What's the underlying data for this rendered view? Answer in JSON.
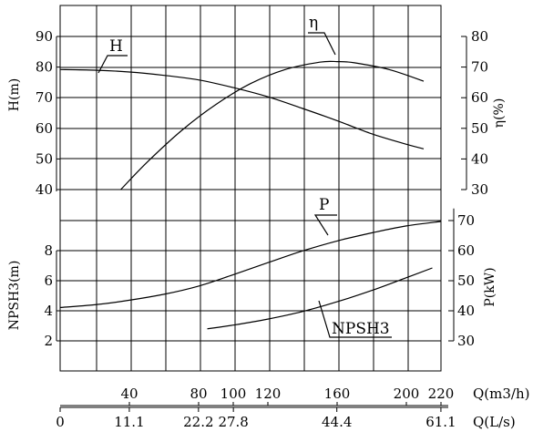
{
  "chart_data": {
    "type": "line",
    "grid": true,
    "x_axes": {
      "q_m3h": {
        "label": "Q(m3/h)",
        "ticks": [
          "40",
          "80",
          "100",
          "120",
          "160",
          "200",
          "220"
        ],
        "range": [
          0,
          220
        ]
      },
      "q_ls": {
        "label": "Q(L/s)",
        "ticks": [
          "0",
          "11.1",
          "22.2",
          "27.8",
          "44.4",
          "61.1"
        ],
        "range": [
          0,
          61.1
        ]
      }
    },
    "y_axes": {
      "H": {
        "label": "H(m)",
        "ticks": [
          "40",
          "50",
          "60",
          "70",
          "80",
          "90"
        ],
        "range": [
          40,
          90
        ]
      },
      "eta": {
        "label": "η(%)",
        "ticks": [
          "30",
          "40",
          "50",
          "60",
          "70",
          "80"
        ],
        "range": [
          30,
          80
        ]
      },
      "P": {
        "label": "P(kW)",
        "ticks": [
          "30",
          "40",
          "50",
          "60",
          "70"
        ],
        "range": [
          30,
          70
        ]
      },
      "NPSH3": {
        "label": "NPSH3(m)",
        "ticks": [
          "2",
          "4",
          "6",
          "8"
        ],
        "range": [
          2,
          8
        ]
      }
    },
    "series": [
      {
        "name": "H",
        "axis": "H",
        "x": [
          0,
          20,
          40,
          60,
          80,
          100,
          120,
          140,
          160,
          180,
          200,
          210
        ],
        "y": [
          79.2,
          79,
          78.4,
          77.3,
          75.8,
          73.3,
          70.3,
          66.5,
          62.5,
          58.2,
          54.8,
          53.3
        ]
      },
      {
        "name": "η",
        "axis": "eta",
        "x": [
          35,
          50,
          70,
          90,
          110,
          130,
          150,
          160,
          170,
          190,
          210
        ],
        "y": [
          30,
          38.8,
          49.2,
          57.8,
          64.6,
          69.2,
          71.6,
          71.8,
          71.4,
          69.2,
          65.4
        ]
      },
      {
        "name": "P",
        "axis": "P",
        "x": [
          0,
          20,
          40,
          60,
          80,
          100,
          120,
          140,
          160,
          180,
          200,
          220
        ],
        "y": [
          41.1,
          42,
          43.5,
          45.5,
          48.2,
          52,
          56,
          59.9,
          63.2,
          65.9,
          68.2,
          69.7
        ]
      },
      {
        "name": "NPSH3",
        "axis": "NPSH3",
        "x": [
          85,
          100,
          120,
          140,
          160,
          180,
          200,
          215
        ],
        "y": [
          2.8,
          3.05,
          3.45,
          3.95,
          4.6,
          5.35,
          6.2,
          6.85
        ]
      }
    ],
    "annotations": [
      "H",
      "η",
      "P",
      "NPSH3"
    ]
  }
}
